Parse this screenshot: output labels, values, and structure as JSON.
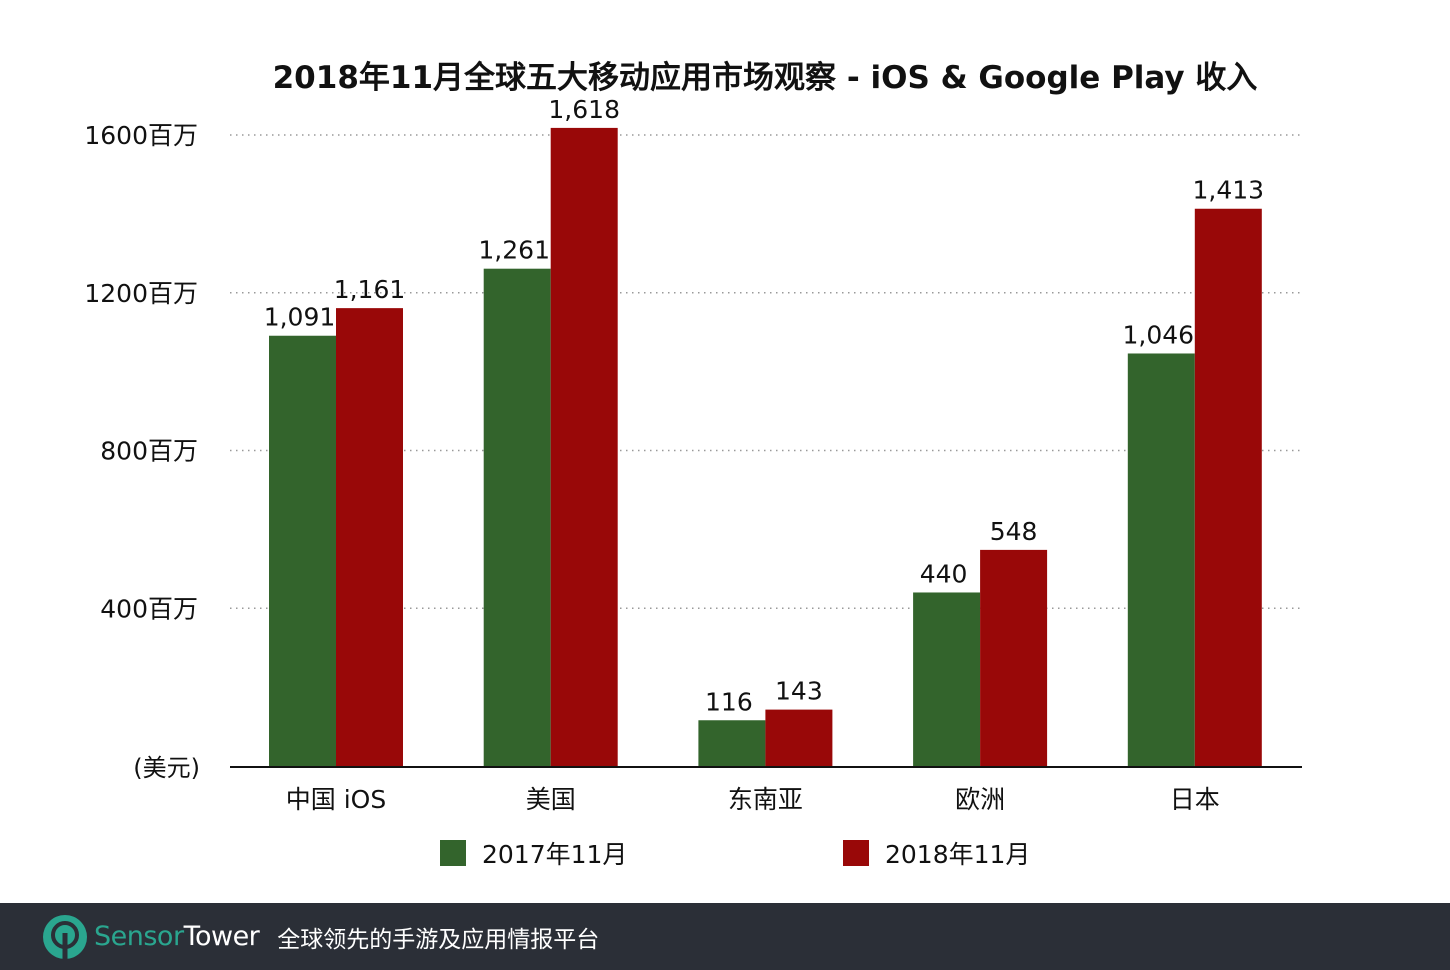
{
  "chart_data": {
    "type": "bar",
    "title": "2018年11月全球五大移动应用市场观察 - iOS & Google Play 收入",
    "categories": [
      "中国 iOS",
      "美国",
      "东南亚",
      "欧洲",
      "日本"
    ],
    "series": [
      {
        "name": "2017年11月",
        "color": "#33642c",
        "values": [
          1091,
          1261,
          116,
          440,
          1046
        ],
        "labels": [
          "1,091",
          "1,261",
          "116",
          "440",
          "1,046"
        ]
      },
      {
        "name": "2018年11月",
        "color": "#990808",
        "values": [
          1161,
          1618,
          143,
          548,
          1413
        ],
        "labels": [
          "1,161",
          "1,618",
          "143",
          "548",
          "1,413"
        ]
      }
    ],
    "yticks": [
      400,
      800,
      1200,
      1600
    ],
    "ytick_labels": [
      "400百万",
      "800百万",
      "1200百万",
      "1600百万"
    ],
    "ylabel": "(美元)",
    "ylim": [
      0,
      1600
    ],
    "grid": true,
    "legend_position": "bottom"
  },
  "footer": {
    "brand_part1": "Sensor",
    "brand_part2": "Tower",
    "slogan": "全球领先的手游及应用情报平台",
    "brand_color": "#2aa68f"
  }
}
